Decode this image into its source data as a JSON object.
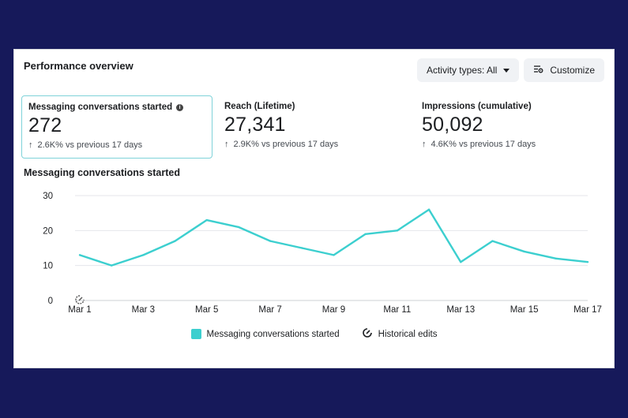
{
  "header": {
    "title": "Performance overview",
    "activity_button_label": "Activity types: All",
    "customize_button_label": "Customize"
  },
  "metrics": [
    {
      "label": "Messaging conversations started",
      "value": "272",
      "change": "2.6K% vs previous 17 days",
      "selected": true
    },
    {
      "label": "Reach (Lifetime)",
      "value": "27,341",
      "change": "2.9K% vs previous 17 days",
      "selected": false
    },
    {
      "label": "Impressions (cumulative)",
      "value": "50,092",
      "change": "4.6K% vs previous 17 days",
      "selected": false
    }
  ],
  "chart_title": "Messaging conversations started",
  "legend": {
    "series_label": "Messaging conversations started",
    "edits_label": "Historical edits"
  },
  "colors": {
    "line": "#3ccfcf",
    "grid": "#e4e6eb",
    "background": "#16195a"
  },
  "chart_data": {
    "type": "line",
    "title": "Messaging conversations started",
    "xlabel": "",
    "ylabel": "",
    "x": [
      "Mar 1",
      "Mar 2",
      "Mar 3",
      "Mar 4",
      "Mar 5",
      "Mar 6",
      "Mar 7",
      "Mar 8",
      "Mar 9",
      "Mar 10",
      "Mar 11",
      "Mar 12",
      "Mar 13",
      "Mar 14",
      "Mar 15",
      "Mar 16",
      "Mar 17"
    ],
    "x_tick_labels": [
      "Mar 1",
      "Mar 3",
      "Mar 5",
      "Mar 7",
      "Mar 9",
      "Mar 11",
      "Mar 13",
      "Mar 15",
      "Mar 17"
    ],
    "y_ticks": [
      0,
      10,
      20,
      30
    ],
    "ylim": [
      0,
      30
    ],
    "grid": true,
    "legend_position": "bottom",
    "series": [
      {
        "name": "Messaging conversations started",
        "values": [
          13,
          10,
          13,
          17,
          23,
          21,
          17,
          15,
          13,
          19,
          20,
          26,
          11,
          17,
          14,
          12,
          11
        ]
      }
    ]
  }
}
